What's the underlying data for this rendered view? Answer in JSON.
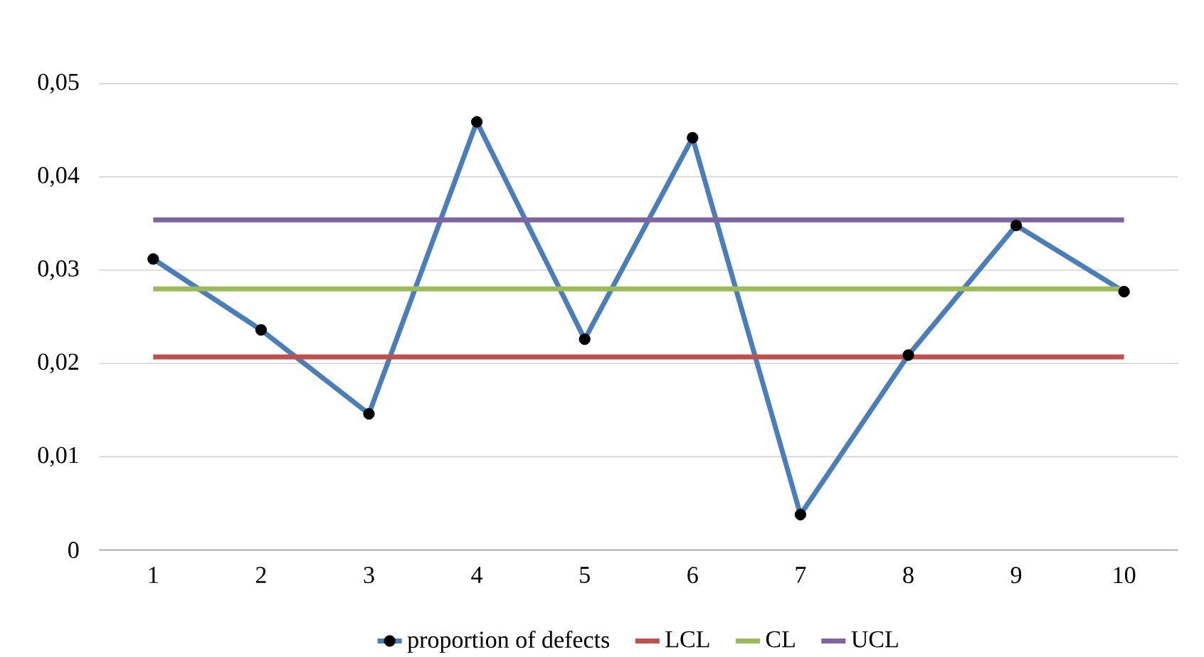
{
  "chart_data": {
    "type": "line",
    "categories": [
      "1",
      "2",
      "3",
      "4",
      "5",
      "6",
      "7",
      "8",
      "9",
      "10"
    ],
    "series": [
      {
        "name": "proportion of defects",
        "color": "#4a7ebb",
        "marker": "circle",
        "values": [
          0.0312,
          0.0236,
          0.0146,
          0.0459,
          0.0226,
          0.0442,
          0.0038,
          0.0209,
          0.0348,
          0.0277
        ]
      },
      {
        "name": "LCL",
        "color": "#c0504d",
        "values": [
          0.0207,
          0.0207,
          0.0207,
          0.0207,
          0.0207,
          0.0207,
          0.0207,
          0.0207,
          0.0207,
          0.0207
        ]
      },
      {
        "name": "CL",
        "color": "#9bbb59",
        "values": [
          0.028,
          0.028,
          0.028,
          0.028,
          0.028,
          0.028,
          0.028,
          0.028,
          0.028,
          0.028
        ]
      },
      {
        "name": "UCL",
        "color": "#8064a2",
        "values": [
          0.0354,
          0.0354,
          0.0354,
          0.0354,
          0.0354,
          0.0354,
          0.0354,
          0.0354,
          0.0354,
          0.0354
        ]
      }
    ],
    "ylim": [
      0,
      0.05
    ],
    "yticks": [
      0,
      {
        "value": 0.01,
        "label": "0,01"
      },
      {
        "value": 0.02,
        "label": "0,02"
      },
      {
        "value": 0.03,
        "label": "0,03"
      },
      {
        "value": 0.04,
        "label": "0,04"
      },
      {
        "value": 0.05,
        "label": "0,05"
      }
    ],
    "grid": "y",
    "legend": "bottom"
  }
}
